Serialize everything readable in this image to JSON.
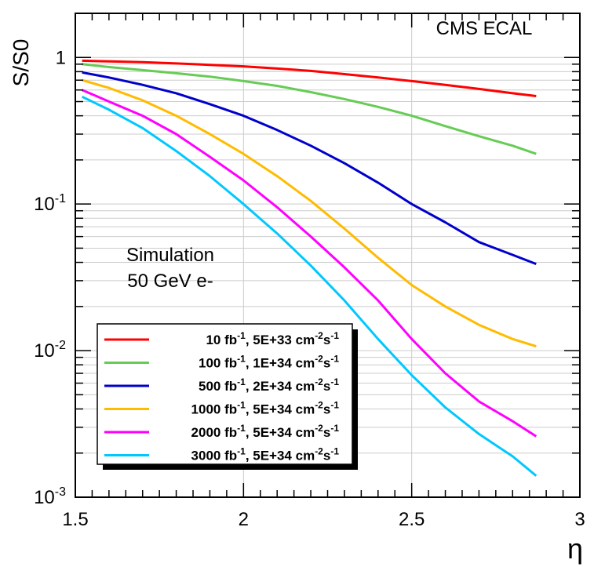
{
  "chart_data": {
    "type": "line",
    "title": "",
    "annotation_top": "CMS ECAL",
    "annotation_sim": [
      "Simulation",
      "50 GeV e-"
    ],
    "xlabel": "η",
    "ylabel": "S/S0",
    "xlim": [
      1.5,
      3.0
    ],
    "ylim": [
      0.001,
      2.0
    ],
    "yscale": "log",
    "grid": true,
    "legend_position": "lower-left",
    "x_ticks": [
      "1.5",
      "2",
      "2.5",
      "3"
    ],
    "y_ticks": [
      {
        "value": 1,
        "base": "1",
        "exp": ""
      },
      {
        "value": 0.1,
        "base": "10",
        "exp": "-1"
      },
      {
        "value": 0.01,
        "base": "10",
        "exp": "-2"
      },
      {
        "value": 0.001,
        "base": "10",
        "exp": "-3"
      }
    ],
    "x": [
      1.52,
      1.6,
      1.7,
      1.8,
      1.9,
      2.0,
      2.1,
      2.2,
      2.3,
      2.4,
      2.5,
      2.6,
      2.7,
      2.8,
      2.87
    ],
    "series": [
      {
        "name": "10 fb-1, 5E+33 cm-2s-1",
        "label_main": "10 fb",
        "lumi": "5E+33",
        "color": "#ff0000",
        "values": [
          0.95,
          0.94,
          0.93,
          0.91,
          0.89,
          0.87,
          0.84,
          0.81,
          0.77,
          0.73,
          0.69,
          0.65,
          0.61,
          0.57,
          0.545
        ]
      },
      {
        "name": "100 fb-1, 1E+34 cm-2s-1",
        "label_main": "100 fb",
        "lumi": "1E+34",
        "color": "#66cc55",
        "values": [
          0.9,
          0.86,
          0.82,
          0.78,
          0.74,
          0.69,
          0.64,
          0.58,
          0.52,
          0.46,
          0.4,
          0.34,
          0.29,
          0.25,
          0.22
        ]
      },
      {
        "name": "500 fb-1, 2E+34 cm-2s-1",
        "label_main": "500 fb",
        "lumi": "2E+34",
        "color": "#0000cc",
        "values": [
          0.79,
          0.73,
          0.65,
          0.57,
          0.48,
          0.4,
          0.32,
          0.25,
          0.19,
          0.14,
          0.1,
          0.075,
          0.055,
          0.045,
          0.039
        ]
      },
      {
        "name": "1000 fb-1, 5E+34 cm-2s-1",
        "label_main": "1000 fb",
        "lumi": "5E+34",
        "color": "#ffbb00",
        "values": [
          0.7,
          0.62,
          0.51,
          0.4,
          0.3,
          0.22,
          0.155,
          0.105,
          0.068,
          0.043,
          0.028,
          0.02,
          0.015,
          0.012,
          0.0107
        ]
      },
      {
        "name": "2000 fb-1, 5E+34 cm-2s-1",
        "label_main": "2000 fb",
        "lumi": "5E+34",
        "color": "#ff00ff",
        "values": [
          0.6,
          0.5,
          0.4,
          0.3,
          0.21,
          0.145,
          0.095,
          0.06,
          0.037,
          0.022,
          0.012,
          0.007,
          0.0045,
          0.0033,
          0.0026
        ]
      },
      {
        "name": "3000 fb-1, 5E+34 cm-2s-1",
        "label_main": "3000 fb",
        "lumi": "5E+34",
        "color": "#00c8ff",
        "values": [
          0.54,
          0.44,
          0.33,
          0.23,
          0.155,
          0.1,
          0.063,
          0.038,
          0.022,
          0.012,
          0.0068,
          0.0041,
          0.0027,
          0.0019,
          0.0014
        ]
      }
    ]
  }
}
